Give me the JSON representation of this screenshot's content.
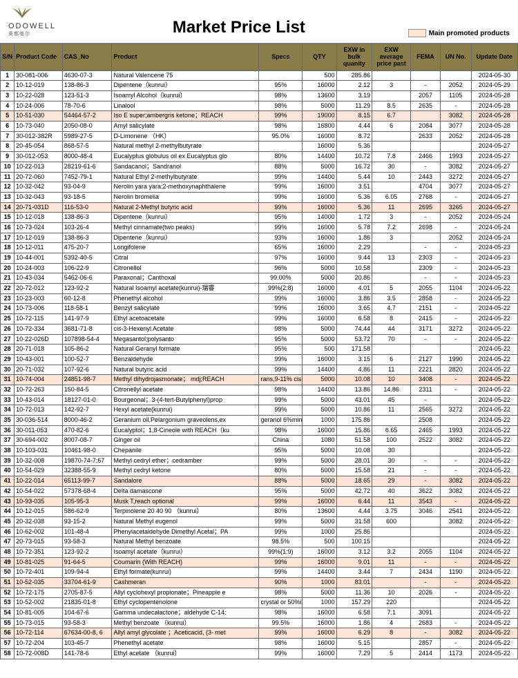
{
  "brand": {
    "name": "ODOWELL",
    "sub": "奥都维尔"
  },
  "title": "Market Price List",
  "legend": "Main promoted products",
  "promoted_bg": "#fce4d6",
  "header_bg": "#8a7d4a",
  "columns": [
    "S/N",
    "Product Code",
    "CAS_No",
    "Product",
    "Specs",
    "QTY",
    "EXW in bulk quanity",
    "EXW average price past",
    "FEMA",
    "UN No.",
    "Update Date"
  ],
  "rows": [
    {
      "sn": 1,
      "code": "30-081-006",
      "cas": "4630-07-3",
      "product": "Natural Valencene 75",
      "specs": "",
      "qty": "500",
      "exw1": "285.86",
      "exw2": "",
      "fema": "",
      "un": "",
      "date": "2024-05-30",
      "hl": false
    },
    {
      "sn": 2,
      "code": "10-12-019",
      "cas": "138-86-3",
      "product": "Dipentene（kunrui）",
      "specs": "95%",
      "qty": "16000",
      "exw1": "2.12",
      "exw2": "3",
      "fema": "-",
      "un": "2052",
      "date": "2024-05-29",
      "hl": false
    },
    {
      "sn": 3,
      "code": "10-22-028",
      "cas": "123-51-3",
      "product": "Isoamyl Alcohol（kunrui）",
      "specs": "98%",
      "qty": "13600",
      "exw1": "3.19",
      "exw2": "",
      "fema": "2057",
      "un": "1105",
      "date": "2024-05-28",
      "hl": false
    },
    {
      "sn": 4,
      "code": "10-24-006",
      "cas": "78-70-6",
      "product": "Linalool",
      "specs": "98%",
      "qty": "5000",
      "exw1": "11.29",
      "exw2": "8.5",
      "fema": "2635",
      "un": "-",
      "date": "2024-05-28",
      "hl": false
    },
    {
      "sn": 5,
      "code": "10-51-030",
      "cas": "54464-57-2",
      "product": "Iso E super;ambergris ketone；REACH",
      "specs": "99%",
      "qty": "19000",
      "exw1": "8.15",
      "exw2": "6.7",
      "fema": "",
      "un": "3082",
      "date": "2024-05-28",
      "hl": true
    },
    {
      "sn": 6,
      "code": "10-73-040",
      "cas": "2050-08-0",
      "product": "Amyl salicylate",
      "specs": "98%",
      "qty": "16800",
      "exw1": "4.44",
      "exw2": "6",
      "fema": "2084",
      "un": "3077",
      "date": "2024-05-28",
      "hl": false
    },
    {
      "sn": 7,
      "code": "30-012-382R",
      "cas": "5989-27-5",
      "product": "D-Limonene （HK）",
      "specs": "95.0%",
      "qty": "16000",
      "exw1": "8.72",
      "exw2": "",
      "fema": "2633",
      "un": "2052",
      "date": "2024-05-28",
      "hl": false
    },
    {
      "sn": 8,
      "code": "20-45-054",
      "cas": "868-57-5",
      "product": "Natural methyl 2-methylbutyrate",
      "specs": "",
      "qty": "16000",
      "exw1": "5.36",
      "exw2": "",
      "fema": "",
      "un": "",
      "date": "2024-05-27",
      "hl": false
    },
    {
      "sn": 9,
      "code": "30-012-053",
      "cas": "8000-48-4",
      "product": "Eucalyptus globulus oil ex Eucalyptus glo",
      "specs": "80%",
      "qty": "14400",
      "exw1": "10.72",
      "exw2": "7.8",
      "fema": "2466",
      "un": "1993",
      "date": "2024-05-27",
      "hl": false
    },
    {
      "sn": 10,
      "code": "10-22-013",
      "cas": "28219-61-6",
      "product": "Sandacanol；Sandranol",
      "specs": "88%",
      "qty": "5000",
      "exw1": "16.72",
      "exw2": "30",
      "fema": "-",
      "un": "3082",
      "date": "2024-05-27",
      "hl": false
    },
    {
      "sn": 11,
      "code": "20-72-060",
      "cas": "7452-79-1",
      "product": "Natural Ethyl 2-methylbutyrate",
      "specs": "99%",
      "qty": "14400",
      "exw1": "5.44",
      "exw2": "10",
      "fema": "2443",
      "un": "3272",
      "date": "2024-05-27",
      "hl": false
    },
    {
      "sn": 12,
      "code": "10-32-042",
      "cas": "93-04-9",
      "product": "Nerolin yara yara;2-methoxynaphthalene",
      "specs": "99%",
      "qty": "16000",
      "exw1": "3.51",
      "exw2": "",
      "fema": "4704",
      "un": "3077",
      "date": "2024-05-27",
      "hl": false
    },
    {
      "sn": 13,
      "code": "10-32-043",
      "cas": "93-18-5",
      "product": "Nerolin bromelia",
      "specs": "99%",
      "qty": "16000",
      "exw1": "5.36",
      "exw2": "6.05",
      "fema": "2768",
      "un": "-",
      "date": "2024-05-27",
      "hl": false
    },
    {
      "sn": 14,
      "code": "20-71-031D",
      "cas": "116-53-0",
      "product": "Natural 2-Methyl butyric acid",
      "specs": "99%",
      "qty": "16000",
      "exw1": "5.36",
      "exw2": "11",
      "fema": "2695",
      "un": "3265",
      "date": "2024-05-27",
      "hl": true
    },
    {
      "sn": 15,
      "code": "10-12-018",
      "cas": "138-86-3",
      "product": "Dipentene（kunrui）",
      "specs": "95%",
      "qty": "14000",
      "exw1": "1.72",
      "exw2": "3",
      "fema": "-",
      "un": "2052",
      "date": "2024-05-24",
      "hl": false
    },
    {
      "sn": 16,
      "code": "10-73-024",
      "cas": "103-26-4",
      "product": "Methyl cinnamate(two peaks)",
      "specs": "99%",
      "qty": "16000",
      "exw1": "5.78",
      "exw2": "7.2",
      "fema": "2698",
      "un": "-",
      "date": "2024-05-24",
      "hl": false
    },
    {
      "sn": 17,
      "code": "10-12-019",
      "cas": "138-86-3",
      "product": "Dipentene（kunrui）",
      "specs": "93%",
      "qty": "16000",
      "exw1": "1.86",
      "exw2": "3",
      "fema": "",
      "un": "2052",
      "date": "2024-05-24",
      "hl": false
    },
    {
      "sn": 18,
      "code": "10-12-011",
      "cas": "475-20-7",
      "product": "Longifolene",
      "specs": "65%",
      "qty": "16000",
      "exw1": "2.29",
      "exw2": "",
      "fema": "-",
      "un": "-",
      "date": "2024-05-23",
      "hl": false
    },
    {
      "sn": 19,
      "code": "10-44-001",
      "cas": "5392-40-5",
      "product": "Citral",
      "specs": "97%",
      "qty": "16000",
      "exw1": "9.44",
      "exw2": "13",
      "fema": "2303",
      "un": "-",
      "date": "2024-05-23",
      "hl": false
    },
    {
      "sn": 20,
      "code": "10-24-003",
      "cas": "106-22-9",
      "product": "Citronellol",
      "specs": "96%",
      "qty": "5000",
      "exw1": "10.58",
      "exw2": "",
      "fema": "2309",
      "un": "-",
      "date": "2024-05-23",
      "hl": false
    },
    {
      "sn": 21,
      "code": "10-43-034",
      "cas": "5462-06-6",
      "product": "Paraxonal；Canthoxal",
      "specs": "99.00%",
      "qty": "5000",
      "exw1": "20.86",
      "exw2": "",
      "fema": "-",
      "un": "-",
      "date": "2024-05-23",
      "hl": false
    },
    {
      "sn": 22,
      "code": "20-72-012",
      "cas": "123-92-2",
      "product": "Natural Isoamyl acetate(kunrui)-瑞睿",
      "specs": "99%(2:8)",
      "qty": "16000",
      "exw1": "4.01",
      "exw2": "5",
      "fema": "2055",
      "un": "1104",
      "date": "2024-05-22",
      "hl": false
    },
    {
      "sn": 23,
      "code": "10-23-003",
      "cas": "60-12-8",
      "product": "Phenethyl alcohol",
      "specs": "99%",
      "qty": "16000",
      "exw1": "3.86",
      "exw2": "3.5",
      "fema": "2858",
      "un": "-",
      "date": "2024-05-22",
      "hl": false
    },
    {
      "sn": 24,
      "code": "10-73-006",
      "cas": "118-58-1",
      "product": "Benzyl salicylate",
      "specs": "99%",
      "qty": "16000",
      "exw1": "3.65",
      "exw2": "4.7",
      "fema": "2151",
      "un": "-",
      "date": "2024-05-22",
      "hl": false
    },
    {
      "sn": 25,
      "code": "10-72-115",
      "cas": "141-97-9",
      "product": "Ethyl acetoacetate",
      "specs": "99%",
      "qty": "16000",
      "exw1": "6.58",
      "exw2": "8",
      "fema": "2415",
      "un": "-",
      "date": "2024-05-22",
      "hl": false
    },
    {
      "sn": 26,
      "code": "10-72-334",
      "cas": "3681-71-8",
      "product": "cis-3-Hexenyl Acetate",
      "specs": "98%",
      "qty": "5000",
      "exw1": "74.44",
      "exw2": "44",
      "fema": "3171",
      "un": "3272",
      "date": "2024-05-22",
      "hl": false
    },
    {
      "sn": 27,
      "code": "10-22-026D",
      "cas": "107898-54-4",
      "product": "Megasantol;polysanto",
      "specs": "95%",
      "qty": "5000",
      "exw1": "53.72",
      "exw2": "70",
      "fema": "-",
      "un": "-",
      "date": "2024-05-22",
      "hl": false
    },
    {
      "sn": 28,
      "code": "20-71-018",
      "cas": "105-86-2",
      "product": "Natural Geranyl formate",
      "specs": "95%",
      "qty": "500",
      "exw1": "171.58",
      "exw2": "",
      "fema": "",
      "un": "",
      "date": "2024-05-22",
      "hl": false
    },
    {
      "sn": 29,
      "code": "10-43-001",
      "cas": "100-52-7",
      "product": "Benzaldehyde",
      "specs": "99%",
      "qty": "16000",
      "exw1": "3.15",
      "exw2": "6",
      "fema": "2127",
      "un": "1990",
      "date": "2024-05-22",
      "hl": false
    },
    {
      "sn": 30,
      "code": "20-71-032",
      "cas": "107-92-6",
      "product": "Natural butyric acid",
      "specs": "99%",
      "qty": "14400",
      "exw1": "4.86",
      "exw2": "11",
      "fema": "2221",
      "un": "2820",
      "date": "2024-05-22",
      "hl": false
    },
    {
      "sn": 31,
      "code": "10-74-004",
      "cas": "24851-98-7",
      "product": "Methyl dihydrojasmonate； mdj;REACH",
      "specs": "rans,9-11% cis is",
      "qty": "5000",
      "exw1": "10.08",
      "exw2": "10",
      "fema": "3408",
      "un": "-",
      "date": "2024-05-22",
      "hl": true
    },
    {
      "sn": 32,
      "code": "10-72-263",
      "cas": "150-84-5",
      "product": "Citronellyl acetate",
      "specs": "98%",
      "qty": "14400",
      "exw1": "13.86",
      "exw2": "14.86",
      "fema": "2311",
      "un": "-",
      "date": "2024-05-22",
      "hl": false
    },
    {
      "sn": 33,
      "code": "10-43-014",
      "cas": "18127-01-0",
      "product": "Bourgeonal；3-(4-tert-Butylphenyl)prop",
      "specs": "99%",
      "qty": "5000",
      "exw1": "43.01",
      "exw2": "45",
      "fema": "-",
      "un": "",
      "date": "2024-05-22",
      "hl": false
    },
    {
      "sn": 34,
      "code": "10-72-013",
      "cas": "142-92-7",
      "product": "Hexyl acetate(kunrui)",
      "specs": "99%",
      "qty": "5000",
      "exw1": "10.86",
      "exw2": "11",
      "fema": "2565",
      "un": "3272",
      "date": "2024-05-22",
      "hl": false
    },
    {
      "sn": 35,
      "code": "30-036-514",
      "cas": "8000-46-2",
      "product": "Geranium oil,Pelargonium graveolens,ex",
      "specs": "geranol 6%min",
      "qty": "1000",
      "exw1": "175.86",
      "exw2": "",
      "fema": "2508",
      "un": "",
      "date": "2024-05-22",
      "hl": false
    },
    {
      "sn": 36,
      "code": "30-011-053",
      "cas": "470-82-6",
      "product": "Eucalyptol；1,8-Cineole with REACH（ku",
      "specs": "98%",
      "qty": "16000",
      "exw1": "15.86",
      "exw2": "6.65",
      "fema": "2465",
      "un": "1993",
      "date": "2024-05-22",
      "hl": false
    },
    {
      "sn": 37,
      "code": "30-694-002",
      "cas": "8007-08-7",
      "product": "Ginger oil",
      "specs": "China",
      "qty": "1080",
      "exw1": "51.58",
      "exw2": "100",
      "fema": "2522",
      "un": "3082",
      "date": "2024-05-22",
      "hl": false
    },
    {
      "sn": 38,
      "code": "10-103-031",
      "cas": "10461-98-0",
      "product": "Chepanile",
      "specs": "95%",
      "qty": "5000",
      "exw1": "10.08",
      "exw2": "30",
      "fema": "",
      "un": "",
      "date": "2024-05-22",
      "hl": false
    },
    {
      "sn": 39,
      "code": "10-32-008",
      "cas": "19870-74-7;67",
      "product": "Methyl cedryl ether；cedramber",
      "specs": "99%",
      "qty": "5000",
      "exw1": "28.01",
      "exw2": "30",
      "fema": "-",
      "un": "-",
      "date": "2024-05-22",
      "hl": false
    },
    {
      "sn": 40,
      "code": "10-54-029",
      "cas": "32388-55-9",
      "product": "Methyl cedryl ketone",
      "specs": "80%",
      "qty": "5000",
      "exw1": "15.58",
      "exw2": "21",
      "fema": "-",
      "un": "-",
      "date": "2024-05-22",
      "hl": false
    },
    {
      "sn": 41,
      "code": "10-22-014",
      "cas": "65113-99-7",
      "product": "Sandalore",
      "specs": "88%",
      "qty": "5000",
      "exw1": "18.65",
      "exw2": "29",
      "fema": "-",
      "un": "3082",
      "date": "2024-05-22",
      "hl": true
    },
    {
      "sn": 42,
      "code": "10-54-022",
      "cas": "57378-68-4",
      "product": "Delta damascone",
      "specs": "95%",
      "qty": "5000",
      "exw1": "42.72",
      "exw2": "40",
      "fema": "3622",
      "un": "3082",
      "date": "2024-05-22",
      "hl": false
    },
    {
      "sn": 43,
      "code": "10-93-035",
      "cas": "105-95-3",
      "product": "Musk T,reach optional",
      "specs": "99%",
      "qty": "16000",
      "exw1": "6.44",
      "exw2": "11",
      "fema": "3543",
      "un": "-",
      "date": "2024-05-22",
      "hl": true
    },
    {
      "sn": 44,
      "code": "10-12-015",
      "cas": "586-62-9",
      "product": "Terpinolene 20 40 90 （kunrui）",
      "specs": "80%",
      "qty": "13600",
      "exw1": "4.44",
      "exw2": "3.75",
      "fema": "3046",
      "un": "2541",
      "date": "2024-05-22",
      "hl": false
    },
    {
      "sn": 45,
      "code": "20-32-038",
      "cas": "93-15-2",
      "product": "Natural Methyl eugenol",
      "specs": "99%",
      "qty": "5000",
      "exw1": "31.58",
      "exw2": "600",
      "fema": "",
      "un": "3082",
      "date": "2024-05-22",
      "hl": false
    },
    {
      "sn": 46,
      "code": "10-62-002",
      "cas": "101-48-4",
      "product": "Phenylacetaldehyde Dimethyl Acetal；PA",
      "specs": "99%",
      "qty": "1000",
      "exw1": "25.86",
      "exw2": "",
      "fema": "",
      "un": "",
      "date": "2024-05-22",
      "hl": false
    },
    {
      "sn": 47,
      "code": "20-73-015",
      "cas": "93-58-3",
      "product": "Natural Methyl benzoate",
      "specs": "98.5%",
      "qty": "500",
      "exw1": "100.15",
      "exw2": "",
      "fema": "",
      "un": "",
      "date": "2024-05-22",
      "hl": false
    },
    {
      "sn": 48,
      "code": "10-72-351",
      "cas": "123-92-2",
      "product": "Isoamyl acetate（kunrui）",
      "specs": "99%(1:9)",
      "qty": "16000",
      "exw1": "3.12",
      "exw2": "3.2",
      "fema": "2055",
      "un": "1104",
      "date": "2024-05-22",
      "hl": false
    },
    {
      "sn": 49,
      "code": "10-81-025",
      "cas": "91-64-5",
      "product": "Coumarin  (With REACH)",
      "specs": "99%",
      "qty": "16000",
      "exw1": "9.01",
      "exw2": "11",
      "fema": "-",
      "un": "-",
      "date": "2024-05-22",
      "hl": true
    },
    {
      "sn": 50,
      "code": "10-72-401",
      "cas": "109-94-4",
      "product": "Ethyl formate(kunrui)",
      "specs": "99%",
      "qty": "14400",
      "exw1": "3.44",
      "exw2": "7",
      "fema": "2434",
      "un": "1190",
      "date": "2024-05-22",
      "hl": false
    },
    {
      "sn": 51,
      "code": "10-52-035",
      "cas": "33704-61-9",
      "product": "Cashmeran",
      "specs": "90%",
      "qty": "1000",
      "exw1": "83.01",
      "exw2": "",
      "fema": "-",
      "un": "-",
      "date": "2024-05-22",
      "hl": true
    },
    {
      "sn": 52,
      "code": "10-72-175",
      "cas": "2705-87-5",
      "product": "Allyl cyclohexyl propionate；Pineapple e",
      "specs": "98%",
      "qty": "5000",
      "exw1": "11.36",
      "exw2": "10",
      "fema": "2026",
      "un": "-",
      "date": "2024-05-22",
      "hl": false
    },
    {
      "sn": 53,
      "code": "10-52-002",
      "cas": "21835-01-8",
      "product": "Ethyl cyclopentenolone",
      "specs": "crystal or 50%in",
      "qty": "1000",
      "exw1": "157.29",
      "exw2": "220",
      "fema": "",
      "un": "",
      "date": "2024-05-22",
      "hl": false
    },
    {
      "sn": 54,
      "code": "10-81-005",
      "cas": "104-67-6",
      "product": "Gamma undecalactone；aldehyde C-14;",
      "specs": "98%",
      "qty": "16000",
      "exw1": "6.58",
      "exw2": "7.1",
      "fema": "3091",
      "un": "",
      "date": "2024-05-22",
      "hl": false
    },
    {
      "sn": 55,
      "code": "10-73-015",
      "cas": "93-58-3",
      "product": "Methyl benzoate （kunrui）",
      "specs": "99.5%",
      "qty": "16000",
      "exw1": "1.86",
      "exw2": "4",
      "fema": "2683",
      "un": "-",
      "date": "2024-05-22",
      "hl": false
    },
    {
      "sn": 56,
      "code": "10-72-114",
      "cas": "67634-00-8, 6",
      "product": "Allyl amyl glycolate ；Aceticacid, (3- met",
      "specs": "99%",
      "qty": "16000",
      "exw1": "6.29",
      "exw2": "8",
      "fema": "-",
      "un": "3082",
      "date": "2024-05-22",
      "hl": true
    },
    {
      "sn": 57,
      "code": "10-72-204",
      "cas": "103-45-7",
      "product": "Phenethyl acetate",
      "specs": "98%",
      "qty": "16000",
      "exw1": "5.15",
      "exw2": "",
      "fema": "2857",
      "un": "-",
      "date": "2024-05-22",
      "hl": false
    },
    {
      "sn": 58,
      "code": "10-72-008D",
      "cas": "141-78-6",
      "product": "Ethyl acetate （kunrui）",
      "specs": "99%",
      "qty": "16000",
      "exw1": "7.29",
      "exw2": "5",
      "fema": "2414",
      "un": "1173",
      "date": "2024-05-22",
      "hl": false
    }
  ]
}
